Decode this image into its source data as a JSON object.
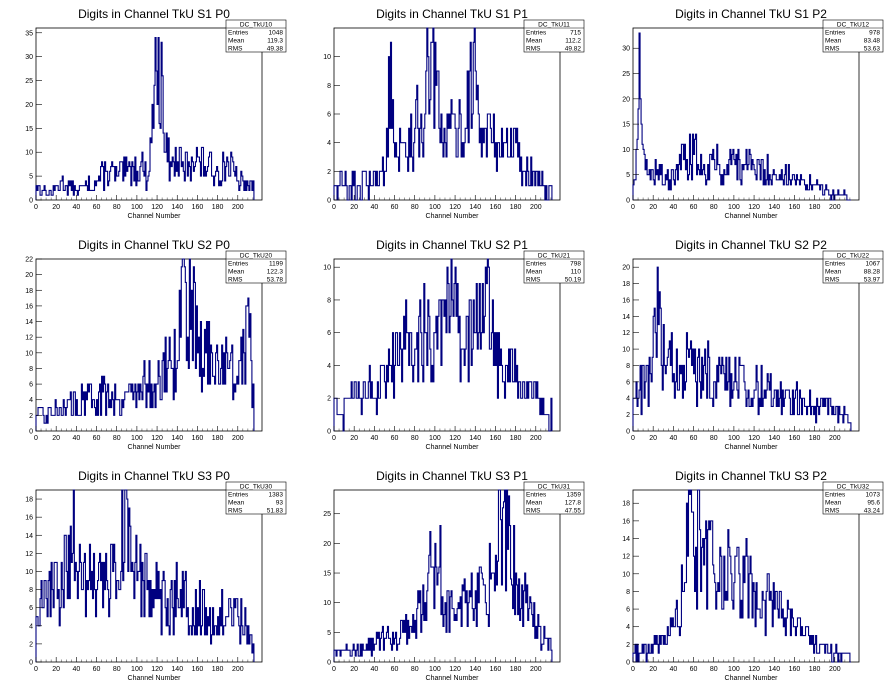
{
  "x_axis_label": "Channel Number",
  "stat_labels": {
    "entries": "Entries",
    "mean": "Mean",
    "rms": "RMS"
  },
  "line_color": "#000080",
  "chart_data": [
    {
      "type": "histogram",
      "title": "Digits in Channel TkU S1 P0",
      "stats": {
        "name": "DC_TkU10",
        "entries": "1048",
        "mean": "119.3",
        "rms": "49.38"
      },
      "xlim": [
        0,
        224
      ],
      "ylim": [
        0,
        36
      ],
      "xticks": [
        0,
        20,
        40,
        60,
        80,
        100,
        120,
        140,
        160,
        180,
        200
      ],
      "yticks": [
        0,
        5,
        10,
        15,
        20,
        25,
        30,
        35
      ],
      "xlabel": "Channel Number",
      "features": [
        [
          0,
          3
        ],
        [
          6,
          2
        ],
        [
          12,
          1
        ],
        [
          18,
          2
        ],
        [
          24,
          4
        ],
        [
          30,
          3
        ],
        [
          40,
          2
        ],
        [
          50,
          3
        ],
        [
          60,
          4
        ],
        [
          70,
          6
        ],
        [
          80,
          5
        ],
        [
          90,
          6
        ],
        [
          96,
          7
        ],
        [
          100,
          6
        ],
        [
          104,
          8
        ],
        [
          110,
          4
        ],
        [
          114,
          12
        ],
        [
          118,
          34
        ],
        [
          120,
          20
        ],
        [
          124,
          33
        ],
        [
          128,
          10
        ],
        [
          134,
          7
        ],
        [
          140,
          8
        ],
        [
          146,
          6
        ],
        [
          154,
          9
        ],
        [
          162,
          8
        ],
        [
          170,
          7
        ],
        [
          180,
          6
        ],
        [
          190,
          8
        ],
        [
          200,
          4
        ],
        [
          210,
          3
        ],
        [
          216,
          3
        ]
      ]
    },
    {
      "type": "histogram",
      "title": "Digits in Channel TkU S1 P1",
      "stats": {
        "name": "DC_TkU11",
        "entries": "715",
        "mean": "112.2",
        "rms": "49.82"
      },
      "xlim": [
        0,
        224
      ],
      "ylim": [
        0,
        12
      ],
      "xticks": [
        0,
        20,
        40,
        60,
        80,
        100,
        120,
        140,
        160,
        180,
        200
      ],
      "yticks": [
        0,
        2,
        4,
        6,
        8,
        10
      ],
      "xlabel": "Channel Number",
      "features": [
        [
          0,
          1
        ],
        [
          8,
          1
        ],
        [
          16,
          1
        ],
        [
          24,
          1
        ],
        [
          32,
          1
        ],
        [
          40,
          2
        ],
        [
          44,
          1
        ],
        [
          50,
          2
        ],
        [
          56,
          11
        ],
        [
          60,
          3
        ],
        [
          70,
          4
        ],
        [
          80,
          5
        ],
        [
          90,
          6
        ],
        [
          96,
          11
        ],
        [
          104,
          5
        ],
        [
          110,
          4
        ],
        [
          120,
          5
        ],
        [
          130,
          5
        ],
        [
          138,
          11
        ],
        [
          144,
          4
        ],
        [
          150,
          5
        ],
        [
          160,
          4
        ],
        [
          170,
          4
        ],
        [
          180,
          4
        ],
        [
          188,
          2
        ],
        [
          200,
          2
        ],
        [
          210,
          1
        ],
        [
          216,
          1
        ]
      ]
    },
    {
      "type": "histogram",
      "title": "Digits in Channel TkU S1 P2",
      "stats": {
        "name": "DC_TkU12",
        "entries": "978",
        "mean": "83.48",
        "rms": "53.63"
      },
      "xlim": [
        0,
        224
      ],
      "ylim": [
        0,
        34
      ],
      "xticks": [
        0,
        20,
        40,
        60,
        80,
        100,
        120,
        140,
        160,
        180,
        200
      ],
      "yticks": [
        0,
        5,
        10,
        15,
        20,
        25,
        30
      ],
      "xlabel": "Channel Number",
      "features": [
        [
          0,
          3
        ],
        [
          4,
          12
        ],
        [
          6,
          33
        ],
        [
          8,
          15
        ],
        [
          10,
          10
        ],
        [
          14,
          5
        ],
        [
          20,
          4
        ],
        [
          26,
          7
        ],
        [
          32,
          5
        ],
        [
          40,
          4
        ],
        [
          50,
          8
        ],
        [
          60,
          9
        ],
        [
          70,
          7
        ],
        [
          80,
          8
        ],
        [
          90,
          6
        ],
        [
          100,
          8
        ],
        [
          110,
          7
        ],
        [
          120,
          6
        ],
        [
          130,
          6
        ],
        [
          140,
          5
        ],
        [
          150,
          5
        ],
        [
          160,
          4
        ],
        [
          170,
          3
        ],
        [
          180,
          3
        ],
        [
          190,
          2
        ],
        [
          200,
          1
        ],
        [
          210,
          1
        ],
        [
          216,
          0
        ]
      ]
    },
    {
      "type": "histogram",
      "title": "Digits in Channel TkU S2 P0",
      "stats": {
        "name": "DC_TkU20",
        "entries": "1199",
        "mean": "122.3",
        "rms": "53.78"
      },
      "xlim": [
        0,
        224
      ],
      "ylim": [
        0,
        22
      ],
      "xticks": [
        0,
        20,
        40,
        60,
        80,
        100,
        120,
        140,
        160,
        180,
        200
      ],
      "yticks": [
        0,
        2,
        4,
        6,
        8,
        10,
        12,
        14,
        16,
        18,
        20,
        22
      ],
      "xlabel": "Channel Number",
      "features": [
        [
          0,
          2
        ],
        [
          10,
          2
        ],
        [
          20,
          3
        ],
        [
          30,
          3
        ],
        [
          40,
          4
        ],
        [
          50,
          4
        ],
        [
          60,
          4
        ],
        [
          70,
          5
        ],
        [
          80,
          4
        ],
        [
          90,
          5
        ],
        [
          100,
          5
        ],
        [
          110,
          6
        ],
        [
          120,
          6
        ],
        [
          130,
          8
        ],
        [
          140,
          9
        ],
        [
          144,
          21
        ],
        [
          150,
          12
        ],
        [
          156,
          21
        ],
        [
          160,
          10
        ],
        [
          168,
          10
        ],
        [
          174,
          10
        ],
        [
          180,
          9
        ],
        [
          190,
          8
        ],
        [
          200,
          6
        ],
        [
          206,
          10
        ],
        [
          210,
          17
        ],
        [
          216,
          3
        ]
      ]
    },
    {
      "type": "histogram",
      "title": "Digits in Channel TkU S2 P1",
      "stats": {
        "name": "DC_TkU21",
        "entries": "798",
        "mean": "110",
        "rms": "50.19"
      },
      "xlim": [
        0,
        224
      ],
      "ylim": [
        0,
        10.5
      ],
      "xticks": [
        0,
        20,
        40,
        60,
        80,
        100,
        120,
        140,
        160,
        180,
        200
      ],
      "yticks": [
        0,
        2,
        4,
        6,
        8,
        10
      ],
      "xlabel": "Channel Number",
      "features": [
        [
          0,
          2
        ],
        [
          6,
          1
        ],
        [
          14,
          2
        ],
        [
          20,
          3
        ],
        [
          30,
          3
        ],
        [
          40,
          2
        ],
        [
          50,
          3
        ],
        [
          60,
          4
        ],
        [
          70,
          5
        ],
        [
          80,
          5
        ],
        [
          90,
          6
        ],
        [
          100,
          6
        ],
        [
          110,
          8
        ],
        [
          120,
          10
        ],
        [
          126,
          5
        ],
        [
          130,
          5
        ],
        [
          140,
          6
        ],
        [
          150,
          10
        ],
        [
          160,
          4
        ],
        [
          170,
          4
        ],
        [
          180,
          3
        ],
        [
          190,
          2
        ],
        [
          200,
          2
        ],
        [
          210,
          1
        ],
        [
          216,
          1
        ]
      ]
    },
    {
      "type": "histogram",
      "title": "Digits in Channel TkU S2 P2",
      "stats": {
        "name": "DC_TkU22",
        "entries": "1067",
        "mean": "88.28",
        "rms": "53.97"
      },
      "xlim": [
        0,
        224
      ],
      "ylim": [
        0,
        21
      ],
      "xticks": [
        0,
        20,
        40,
        60,
        80,
        100,
        120,
        140,
        160,
        180,
        200
      ],
      "yticks": [
        0,
        2,
        4,
        6,
        8,
        10,
        12,
        14,
        16,
        18,
        20
      ],
      "xlabel": "Channel Number",
      "features": [
        [
          0,
          4
        ],
        [
          6,
          5
        ],
        [
          12,
          6
        ],
        [
          18,
          6
        ],
        [
          22,
          12
        ],
        [
          24,
          20
        ],
        [
          28,
          8
        ],
        [
          34,
          9
        ],
        [
          40,
          7
        ],
        [
          50,
          8
        ],
        [
          60,
          7
        ],
        [
          70,
          8
        ],
        [
          80,
          6
        ],
        [
          90,
          7
        ],
        [
          100,
          6
        ],
        [
          110,
          6
        ],
        [
          120,
          5
        ],
        [
          130,
          5
        ],
        [
          140,
          5
        ],
        [
          150,
          4
        ],
        [
          160,
          4
        ],
        [
          170,
          3
        ],
        [
          180,
          3
        ],
        [
          190,
          3
        ],
        [
          200,
          2
        ],
        [
          210,
          2
        ],
        [
          216,
          1
        ]
      ]
    },
    {
      "type": "histogram",
      "title": "Digits in Channel TkU S3 P0",
      "stats": {
        "name": "DC_TkU30",
        "entries": "1383",
        "mean": "93",
        "rms": "51.83"
      },
      "xlim": [
        0,
        224
      ],
      "ylim": [
        0,
        19
      ],
      "xticks": [
        0,
        20,
        40,
        60,
        80,
        100,
        120,
        140,
        160,
        180,
        200
      ],
      "yticks": [
        0,
        2,
        4,
        6,
        8,
        10,
        12,
        14,
        16,
        18
      ],
      "xlabel": "Channel Number",
      "features": [
        [
          0,
          5
        ],
        [
          6,
          6
        ],
        [
          10,
          7
        ],
        [
          16,
          8
        ],
        [
          22,
          8
        ],
        [
          30,
          10
        ],
        [
          34,
          15
        ],
        [
          40,
          10
        ],
        [
          44,
          11
        ],
        [
          50,
          9
        ],
        [
          60,
          8
        ],
        [
          70,
          9
        ],
        [
          80,
          9
        ],
        [
          90,
          18
        ],
        [
          96,
          10
        ],
        [
          100,
          9
        ],
        [
          110,
          8
        ],
        [
          120,
          7
        ],
        [
          130,
          7
        ],
        [
          140,
          7
        ],
        [
          150,
          6
        ],
        [
          160,
          6
        ],
        [
          170,
          5
        ],
        [
          180,
          5
        ],
        [
          190,
          5
        ],
        [
          200,
          5
        ],
        [
          210,
          4
        ],
        [
          216,
          2
        ]
      ]
    },
    {
      "type": "histogram",
      "title": "Digits in Channel TkU S3 P1",
      "stats": {
        "name": "DC_TkU31",
        "entries": "1359",
        "mean": "127.8",
        "rms": "47.55"
      },
      "xlim": [
        0,
        224
      ],
      "ylim": [
        0,
        29
      ],
      "xticks": [
        0,
        20,
        40,
        60,
        80,
        100,
        120,
        140,
        160,
        180,
        200
      ],
      "yticks": [
        0,
        5,
        10,
        15,
        20,
        25
      ],
      "xlabel": "Channel Number",
      "features": [
        [
          0,
          2
        ],
        [
          10,
          2
        ],
        [
          20,
          2
        ],
        [
          30,
          2
        ],
        [
          40,
          3
        ],
        [
          50,
          4
        ],
        [
          60,
          4
        ],
        [
          70,
          5
        ],
        [
          80,
          7
        ],
        [
          90,
          10
        ],
        [
          96,
          16
        ],
        [
          100,
          20
        ],
        [
          104,
          16
        ],
        [
          110,
          10
        ],
        [
          120,
          8
        ],
        [
          130,
          10
        ],
        [
          140,
          12
        ],
        [
          150,
          10
        ],
        [
          156,
          15
        ],
        [
          160,
          18
        ],
        [
          168,
          27
        ],
        [
          172,
          19
        ],
        [
          180,
          15
        ],
        [
          190,
          10
        ],
        [
          200,
          6
        ],
        [
          210,
          4
        ],
        [
          216,
          2
        ]
      ]
    },
    {
      "type": "histogram",
      "title": "Digits in Channel TkU S3 P2",
      "stats": {
        "name": "DC_TkU32",
        "entries": "1073",
        "mean": "95.6",
        "rms": "43.24"
      },
      "xlim": [
        0,
        224
      ],
      "ylim": [
        0,
        19.5
      ],
      "xticks": [
        0,
        20,
        40,
        60,
        80,
        100,
        120,
        140,
        160,
        180,
        200
      ],
      "yticks": [
        0,
        2,
        4,
        6,
        8,
        10,
        12,
        14,
        16,
        18
      ],
      "xlabel": "Channel Number",
      "features": [
        [
          0,
          1
        ],
        [
          10,
          1
        ],
        [
          20,
          2
        ],
        [
          30,
          2
        ],
        [
          40,
          4
        ],
        [
          50,
          8
        ],
        [
          56,
          19
        ],
        [
          60,
          12
        ],
        [
          66,
          15
        ],
        [
          70,
          11
        ],
        [
          76,
          15
        ],
        [
          80,
          10
        ],
        [
          90,
          12
        ],
        [
          100,
          9
        ],
        [
          110,
          9
        ],
        [
          120,
          8
        ],
        [
          130,
          7
        ],
        [
          140,
          6
        ],
        [
          150,
          5
        ],
        [
          160,
          4
        ],
        [
          170,
          3
        ],
        [
          180,
          2
        ],
        [
          190,
          1
        ],
        [
          200,
          1
        ],
        [
          210,
          1
        ],
        [
          216,
          0
        ]
      ]
    }
  ]
}
